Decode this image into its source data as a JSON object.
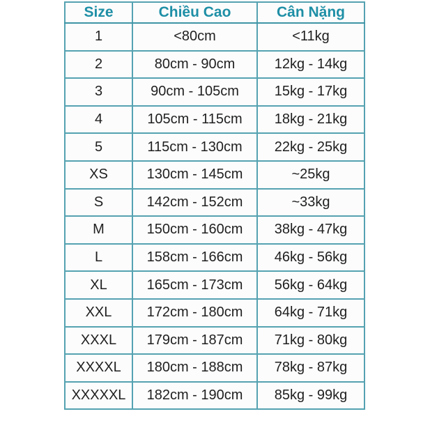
{
  "page": {
    "background": "#ffffff"
  },
  "colors": {
    "border": "#55a2b1",
    "outer_border": "#3e95a6",
    "header_text": "#1e8fa6",
    "body_text": "#1f1f1f",
    "cell_background": "#fcfcfc"
  },
  "chart_data": {
    "type": "table",
    "title": "",
    "columns": [
      "Size",
      "Chiều Cao",
      "Cân Nặng"
    ],
    "rows": [
      [
        "1",
        "<80cm",
        "<11kg"
      ],
      [
        "2",
        "80cm - 90cm",
        "12kg - 14kg"
      ],
      [
        "3",
        "90cm - 105cm",
        "15kg - 17kg"
      ],
      [
        "4",
        "105cm - 115cm",
        "18kg - 21kg"
      ],
      [
        "5",
        "115cm - 130cm",
        "22kg - 25kg"
      ],
      [
        "XS",
        "130cm - 145cm",
        "~25kg"
      ],
      [
        "S",
        "142cm - 152cm",
        "~33kg"
      ],
      [
        "M",
        "150cm - 160cm",
        "38kg - 47kg"
      ],
      [
        "L",
        "158cm - 166cm",
        "46kg - 56kg"
      ],
      [
        "XL",
        "165cm - 173cm",
        "56kg - 64kg"
      ],
      [
        "XXL",
        "172cm - 180cm",
        "64kg - 71kg"
      ],
      [
        "XXXL",
        "179cm - 187cm",
        "71kg - 80kg"
      ],
      [
        "XXXXL",
        "180cm - 188cm",
        "78kg - 87kg"
      ],
      [
        "XXXXXL",
        "182cm - 190cm",
        "85kg - 99kg"
      ]
    ]
  }
}
